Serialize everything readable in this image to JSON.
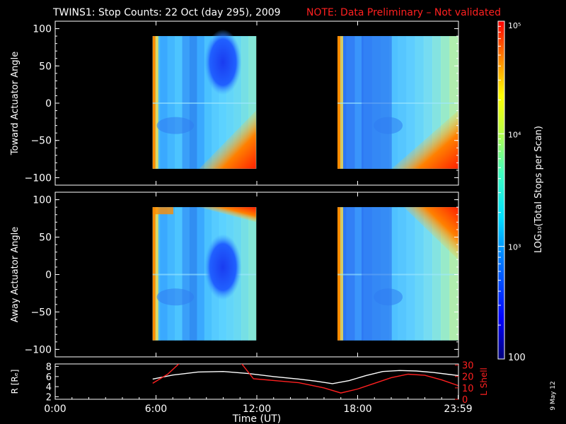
{
  "title": "TWINS1: Stop Counts: 22 Oct (day 295), 2009",
  "note": "NOTE: Data Preliminary – Not validated",
  "side_label": "9 May 12",
  "colorbar": {
    "label": "LOG₁₀(Total Stops per Scan)",
    "ticks": [
      "10⁵",
      "10⁴",
      "10³",
      "100"
    ],
    "tick_values": [
      100000,
      10000,
      1000,
      100
    ],
    "scale": "log",
    "colormap": "rainbow",
    "range": [
      100,
      100000
    ]
  },
  "colors": {
    "background": "#000000",
    "axes": "#ffffff",
    "note": "#ff2020",
    "lshell": "#ff2020",
    "radius": "#ffffff"
  },
  "chart_data": [
    {
      "type": "heatmap",
      "name": "toward",
      "ylabel": "Toward Actuator Angle",
      "ylim": [
        -110,
        110
      ],
      "yticks": [
        100,
        50,
        0,
        -50,
        -100
      ],
      "ytick_labels": [
        "100",
        "50",
        "0",
        "−50",
        "−100"
      ],
      "xlim": [
        0,
        24
      ],
      "data_intervals_hours": [
        [
          5.8,
          11.95
        ],
        [
          16.8,
          23.98
        ]
      ],
      "angle_range": [
        -88,
        90
      ]
    },
    {
      "type": "heatmap",
      "name": "away",
      "ylabel": "Away Actuator Angle",
      "ylim": [
        -110,
        110
      ],
      "yticks": [
        100,
        50,
        0,
        -50,
        -100
      ],
      "ytick_labels": [
        "100",
        "50",
        "0",
        "−50",
        "−100"
      ],
      "xlim": [
        0,
        24
      ],
      "data_intervals_hours": [
        [
          5.8,
          11.95
        ],
        [
          16.8,
          23.98
        ]
      ],
      "angle_range": [
        -88,
        90
      ]
    },
    {
      "type": "line",
      "name": "orbit",
      "ylabel_left": "R [Rₑ]",
      "ylabel_right": "L Shell",
      "xlabel": "Time (UT)",
      "xticks": [
        0,
        6,
        12,
        18,
        23.98
      ],
      "xtick_labels": [
        "0:00",
        "6:00",
        "12:00",
        "18:00",
        "23:59"
      ],
      "xlim": [
        0,
        24
      ],
      "ylim_left": [
        1.5,
        8.5
      ],
      "yticks_left": [
        8,
        6,
        4,
        2
      ],
      "ytick_labels_left": [
        "8",
        "6",
        "4",
        "2"
      ],
      "ylim_right": [
        0,
        31
      ],
      "yticks_right": [
        30,
        20,
        10,
        0
      ],
      "ytick_labels_right": [
        "30",
        "20",
        "10",
        "0"
      ],
      "series": [
        {
          "axis": "left",
          "x": [
            5.8,
            7.0,
            8.5,
            10.0,
            11.5,
            13.0,
            14.5,
            15.5,
            16.5,
            17.5,
            18.5,
            19.5,
            20.5,
            21.5,
            22.5,
            23.98
          ],
          "y": [
            5.5,
            6.3,
            6.9,
            7.0,
            6.6,
            6.0,
            5.5,
            5.1,
            4.6,
            5.2,
            6.2,
            7.0,
            7.2,
            7.1,
            6.8,
            6.2
          ]
        },
        {
          "axis": "right",
          "x": [
            5.8,
            6.7,
            7.5,
            11.0,
            11.8,
            13.0,
            14.5,
            16.0,
            17.0,
            18.0,
            19.0,
            20.0,
            21.0,
            22.0,
            23.0,
            23.98
          ],
          "y": [
            14.0,
            22.0,
            33.0,
            33.0,
            18.0,
            16.5,
            14.5,
            10.0,
            5.5,
            9.0,
            14.0,
            19.0,
            22.0,
            21.0,
            17.0,
            12.0
          ]
        }
      ]
    }
  ]
}
